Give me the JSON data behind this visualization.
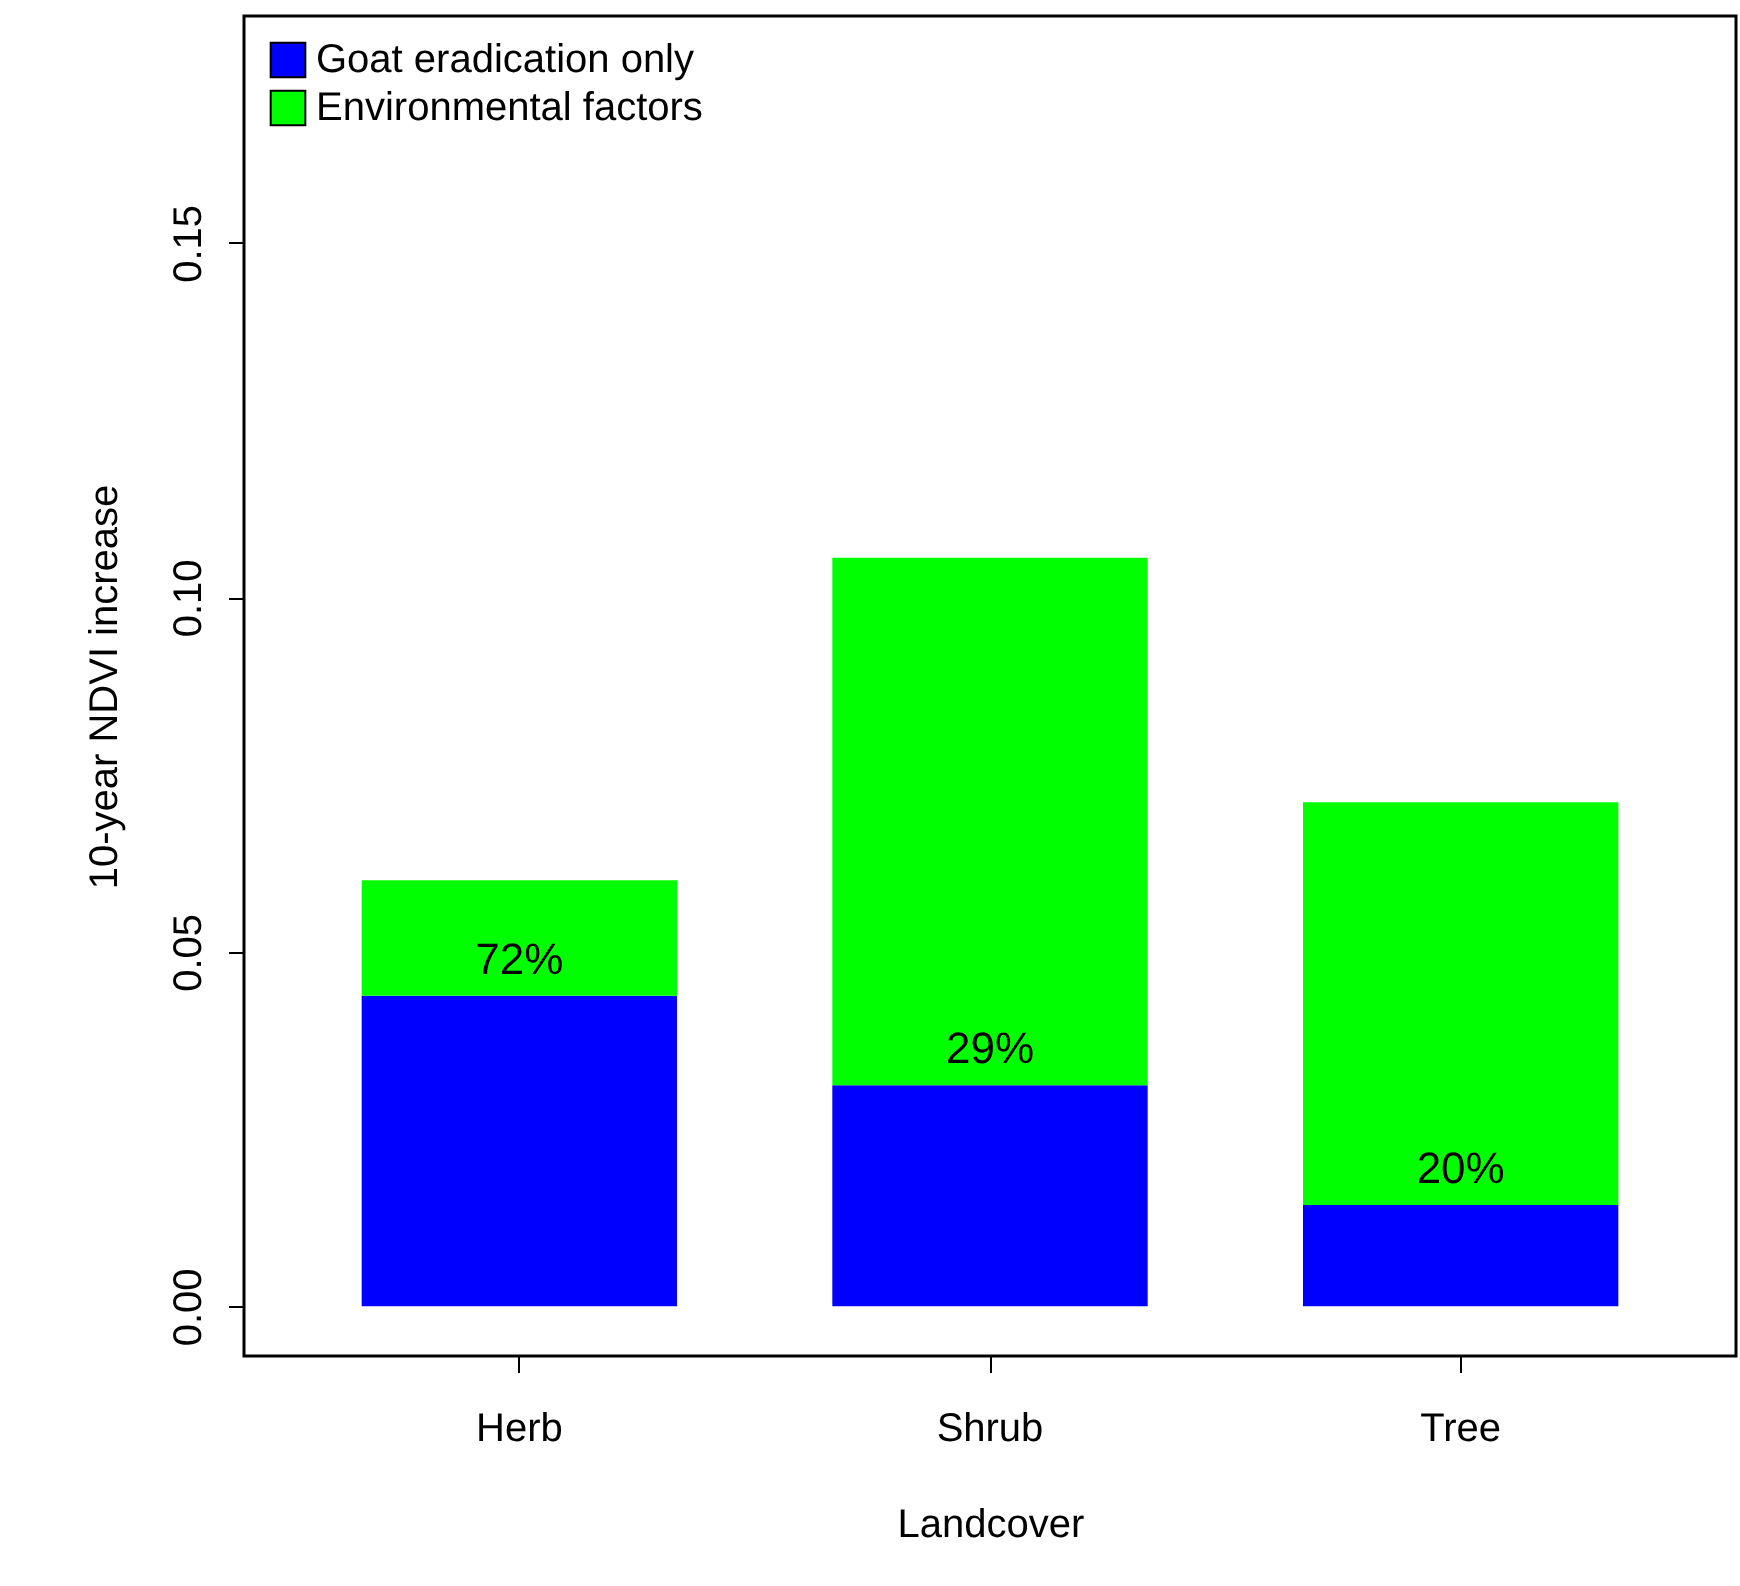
{
  "chart_data": {
    "type": "bar",
    "xlabel": "Landcover",
    "ylabel": "10-year NDVI increase",
    "categories": [
      "Herb",
      "Shrub",
      "Tree"
    ],
    "stacked": true,
    "series": [
      {
        "name": "Goat eradication only",
        "color": "#0000ff",
        "values": [
          0.0438,
          0.0312,
          0.0143
        ]
      },
      {
        "name": "Environmental factors",
        "color": "#00ff00",
        "values": [
          0.0163,
          0.0744,
          0.0568
        ]
      }
    ],
    "ylim": [
      -0.007,
      0.182
    ],
    "yticks": [
      {
        "value": 0,
        "label": "0.00"
      },
      {
        "value": 0.05,
        "label": "0.05"
      },
      {
        "value": 0.1,
        "label": "0.10"
      },
      {
        "value": 0.15,
        "label": "0.15"
      }
    ],
    "annotations": [
      {
        "text": "72%",
        "x": "Herb",
        "y": 0.0438
      },
      {
        "text": "29%",
        "x": "Shrub",
        "y": 0.0312
      },
      {
        "text": "20%",
        "x": "Tree",
        "y": 0.0143
      }
    ],
    "grid": false,
    "legend": "top left"
  }
}
